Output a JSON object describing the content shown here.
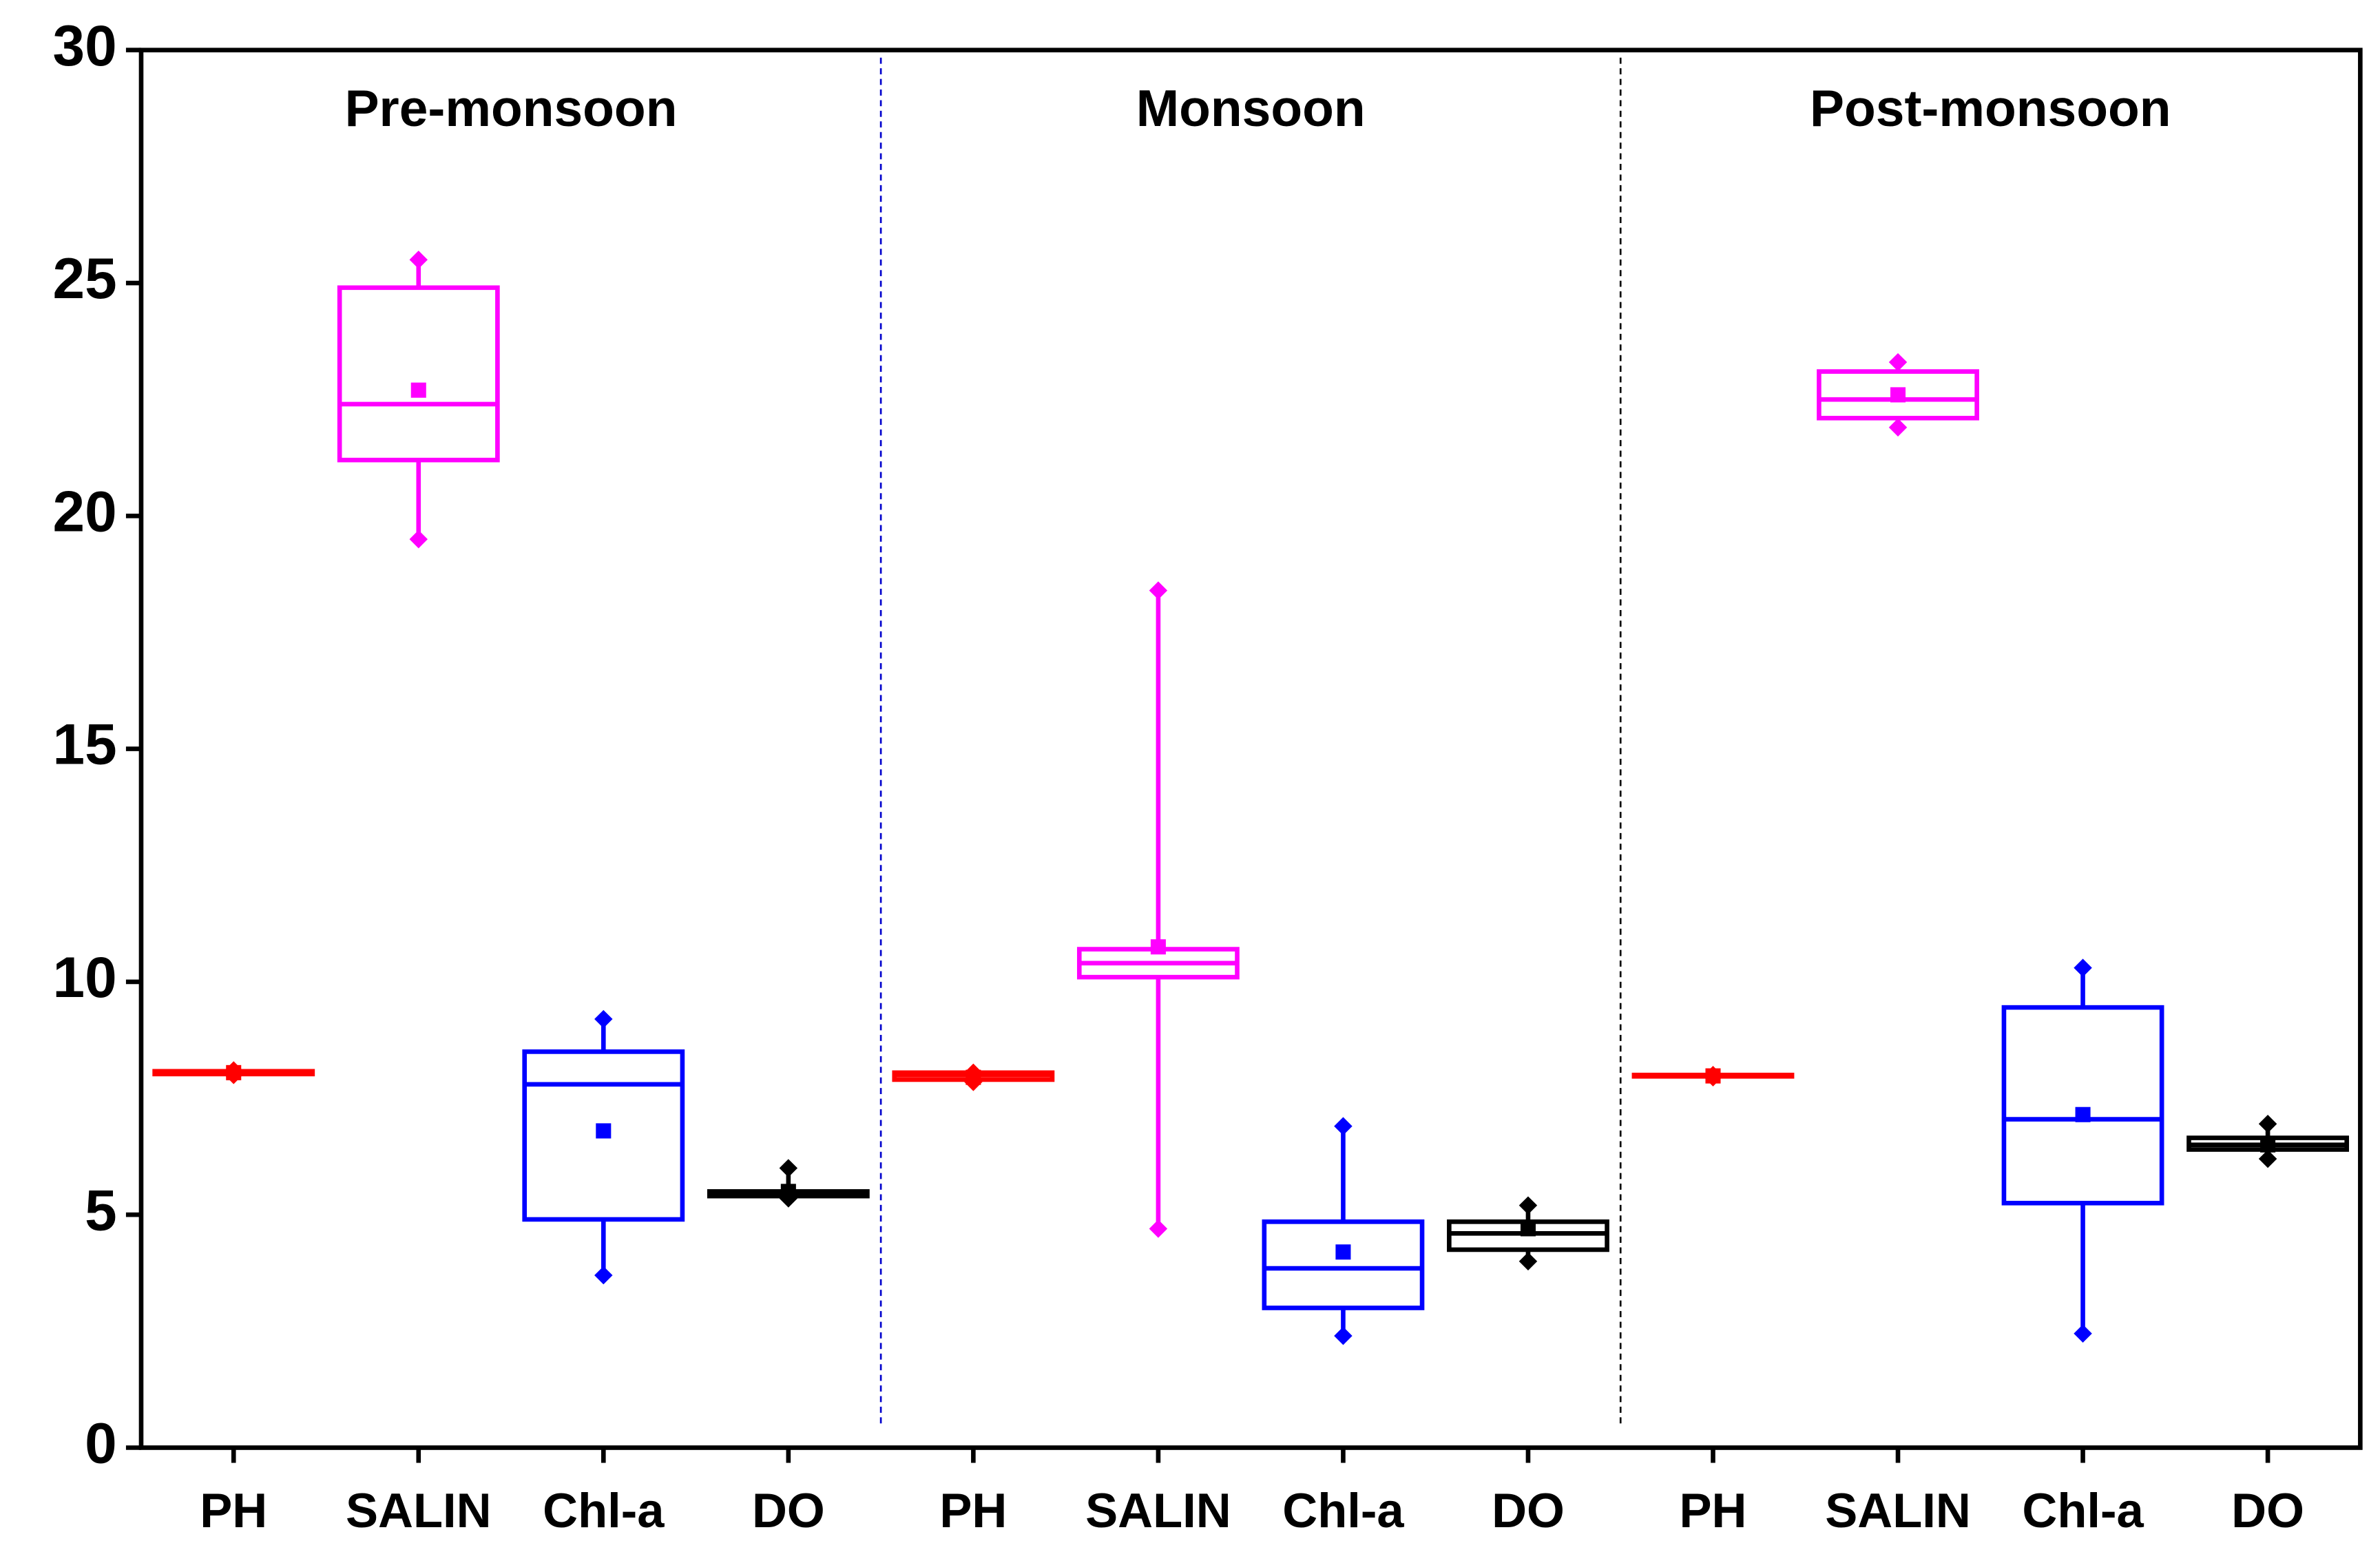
{
  "chart_data": {
    "type": "box",
    "groups": [
      "Pre-monsoon",
      "Monsoon",
      "Post-monsoon"
    ],
    "categories": [
      "PH",
      "SALIN",
      "Chl-a",
      "DO",
      "PH",
      "SALIN",
      "Chl-a",
      "DO",
      "PH",
      "SALIN",
      "Chl-a",
      "DO"
    ],
    "boxes": [
      {
        "color": "#ff0000",
        "min": 8.0,
        "q1": 8.02,
        "median": 8.05,
        "q3": 8.08,
        "max": 8.1,
        "mean": 8.05
      },
      {
        "color": "#ff00ff",
        "min": 19.5,
        "q1": 21.2,
        "median": 22.4,
        "q3": 24.9,
        "max": 25.5,
        "mean": 22.7
      },
      {
        "color": "#0000ff",
        "min": 3.7,
        "q1": 4.9,
        "median": 7.8,
        "q3": 8.5,
        "max": 9.2,
        "mean": 6.8
      },
      {
        "color": "#000000",
        "min": 5.35,
        "q1": 5.4,
        "median": 5.45,
        "q3": 5.5,
        "max": 6.0,
        "mean": 5.5
      },
      {
        "color": "#ff0000",
        "min": 7.85,
        "q1": 7.9,
        "median": 8.0,
        "q3": 8.05,
        "max": 8.05,
        "mean": 7.95
      },
      {
        "color": "#ff00ff",
        "min": 4.7,
        "q1": 10.1,
        "median": 10.4,
        "q3": 10.7,
        "max": 18.4,
        "mean": 10.75
      },
      {
        "color": "#0000ff",
        "min": 2.4,
        "q1": 3.0,
        "median": 3.85,
        "q3": 4.85,
        "max": 6.9,
        "mean": 4.2
      },
      {
        "color": "#000000",
        "min": 4.0,
        "q1": 4.25,
        "median": 4.6,
        "q3": 4.85,
        "max": 5.2,
        "mean": 4.7
      },
      {
        "color": "#ff0000",
        "min": 7.95,
        "q1": 7.97,
        "median": 7.98,
        "q3": 8.0,
        "max": 8.0,
        "mean": 7.98
      },
      {
        "color": "#ff00ff",
        "min": 21.9,
        "q1": 22.1,
        "median": 22.5,
        "q3": 23.1,
        "max": 23.3,
        "mean": 22.6
      },
      {
        "color": "#0000ff",
        "min": 2.45,
        "q1": 5.25,
        "median": 7.05,
        "q3": 9.45,
        "max": 10.3,
        "mean": 7.15
      },
      {
        "color": "#000000",
        "min": 6.2,
        "q1": 6.4,
        "median": 6.5,
        "q3": 6.65,
        "max": 6.95,
        "mean": 6.5
      }
    ],
    "ylim": [
      0,
      30
    ],
    "yticks": [
      0,
      5,
      10,
      15,
      20,
      25,
      30
    ]
  }
}
